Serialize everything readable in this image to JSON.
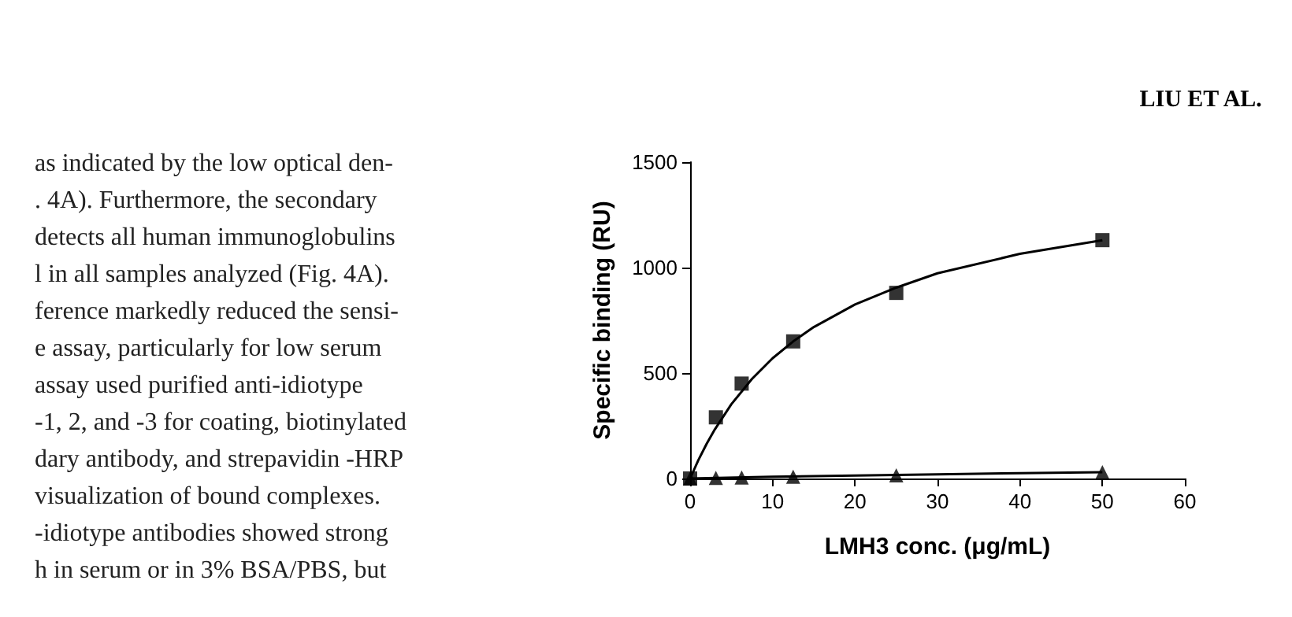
{
  "chart_data": {
    "type": "scatter",
    "xlabel": "LMH3 conc. (μg/mL)",
    "ylabel": "Specific binding (RU)",
    "xlim": [
      0,
      60
    ],
    "xticks": [
      0,
      10,
      20,
      30,
      40,
      50,
      60
    ],
    "ylim": [
      0,
      1500
    ],
    "yticks": [
      0,
      500,
      1000,
      1500
    ],
    "grid": false,
    "annotations": [
      "LIU ET AL.",
      "as indicated by the low optical den-",
      ". 4A). Furthermore, the secondary",
      "detects all human immunoglobulins",
      "l in all samples analyzed (Fig. 4A).",
      "ference markedly reduced the sensi-",
      "e assay, particularly for low serum",
      "assay used purified anti-idiotype",
      "-1, 2, and -3 for coating, biotinylated",
      "dary antibody, and strepavidin -HRP",
      "visualization of bound complexes.",
      "-idiotype antibodies showed strong",
      "h in serum or in 3% BSA/PBS, but"
    ],
    "series": [
      {
        "type": "line",
        "color": "#000000",
        "marker": "none",
        "x": [
          0,
          1,
          2,
          3,
          5,
          7.5,
          10,
          12.5,
          15,
          20,
          25,
          30,
          40,
          50
        ],
        "values": [
          0,
          87,
          164,
          233,
          352,
          472,
          570,
          650,
          718,
          825,
          905,
          973,
          1065,
          1130
        ]
      },
      {
        "type": "line",
        "color": "#000000",
        "marker": "none",
        "x": [
          0,
          10,
          20,
          30,
          40,
          50
        ],
        "values": [
          0,
          8,
          14,
          20,
          25,
          30
        ]
      },
      {
        "type": "scatter",
        "color": "#000000",
        "marker": "square",
        "x": [
          0,
          3.125,
          6.25,
          12.5,
          25,
          50
        ],
        "values": [
          0,
          290,
          450,
          650,
          880,
          1130
        ]
      },
      {
        "type": "scatter",
        "color": "#000000",
        "marker": "triangle",
        "x": [
          0,
          3.125,
          6.25,
          12.5,
          25,
          50
        ],
        "values": [
          0,
          3,
          5,
          8,
          15,
          30
        ]
      }
    ]
  }
}
